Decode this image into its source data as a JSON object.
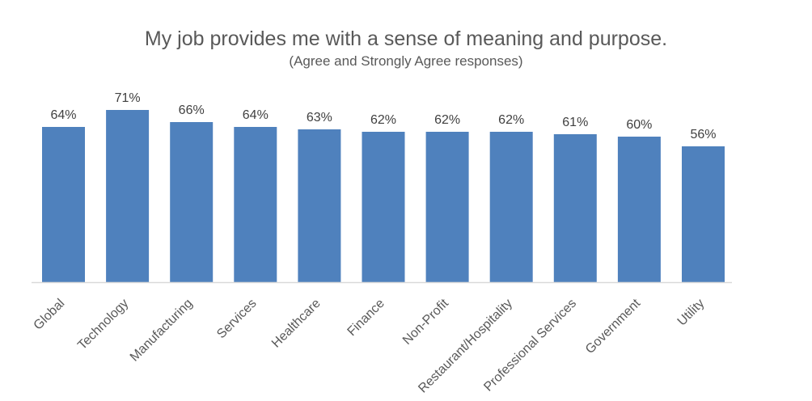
{
  "chart_data": {
    "type": "bar",
    "title": "My job provides me with a sense of meaning and purpose.",
    "subtitle": "(Agree and Strongly Agree responses)",
    "categories": [
      "Global",
      "Technology",
      "Manufacturing",
      "Services",
      "Healthcare",
      "Finance",
      "Non-Profit",
      "Restaurant/Hospitality",
      "Professional Services",
      "Government",
      "Utility"
    ],
    "values": [
      64,
      71,
      66,
      64,
      63,
      62,
      62,
      62,
      61,
      60,
      56
    ],
    "value_labels": [
      "64%",
      "71%",
      "66%",
      "64%",
      "63%",
      "62%",
      "62%",
      "62%",
      "61%",
      "60%",
      "56%"
    ],
    "unit": "%",
    "ylim": [
      0,
      100
    ],
    "grid": false,
    "legend": "none",
    "bar_color": "#4F81BD",
    "axis_color": "#D9D9D9"
  }
}
